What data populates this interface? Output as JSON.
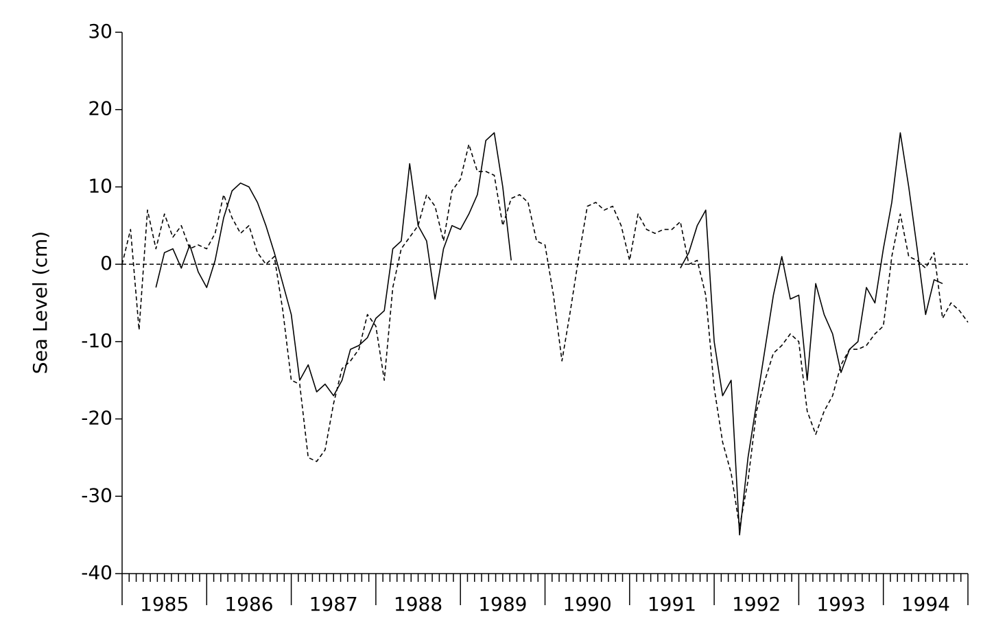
{
  "chart_data": {
    "type": "line",
    "y_label": "Sea Level (cm)",
    "xlim": [
      1985,
      1995
    ],
    "xticks": [
      1985,
      1986,
      1987,
      1988,
      1989,
      1990,
      1991,
      1992,
      1993,
      1994,
      1995
    ],
    "xlabels": [
      "1985",
      "1986",
      "1987",
      "1988",
      "1989",
      "1990",
      "1991",
      "1992",
      "1993",
      "1994"
    ],
    "ylim": [
      -40,
      30
    ],
    "yticks": [
      -40,
      -30,
      -20,
      -10,
      0,
      10,
      20,
      30
    ],
    "zero_line": true,
    "x": [
      1985.0,
      1985.1,
      1985.2,
      1985.3,
      1985.4,
      1985.5,
      1985.6,
      1985.7,
      1985.8,
      1985.9,
      1986.0,
      1986.1,
      1986.2,
      1986.3,
      1986.4,
      1986.5,
      1986.6,
      1986.7,
      1986.8,
      1986.9,
      1987.0,
      1987.1,
      1987.2,
      1987.3,
      1987.4,
      1987.5,
      1987.6,
      1987.7,
      1987.8,
      1987.9,
      1988.0,
      1988.1,
      1988.2,
      1988.3,
      1988.4,
      1988.5,
      1988.6,
      1988.7,
      1988.8,
      1988.9,
      1989.0,
      1989.1,
      1989.2,
      1989.3,
      1989.4,
      1989.5,
      1989.6,
      1989.7,
      1989.8,
      1989.9,
      1990.0,
      1990.1,
      1990.2,
      1990.3,
      1990.4,
      1990.5,
      1990.6,
      1990.7,
      1990.8,
      1990.9,
      1991.0,
      1991.1,
      1991.2,
      1991.3,
      1991.4,
      1991.5,
      1991.6,
      1991.7,
      1991.8,
      1991.9,
      1992.0,
      1992.1,
      1992.2,
      1992.3,
      1992.4,
      1992.5,
      1992.6,
      1992.7,
      1992.8,
      1992.9,
      1993.0,
      1993.1,
      1993.2,
      1993.3,
      1993.4,
      1993.5,
      1993.6,
      1993.7,
      1993.8,
      1993.9,
      1994.0,
      1994.1,
      1994.2,
      1994.3,
      1994.4,
      1994.5,
      1994.6,
      1994.7,
      1994.8,
      1994.9,
      1995.0
    ],
    "series": [
      {
        "color": "#000000",
        "dash": "none",
        "values": [
          null,
          null,
          null,
          null,
          -3,
          1.5,
          2,
          -0.5,
          2.5,
          -1,
          -3,
          0.5,
          6,
          9.5,
          10.5,
          10,
          8,
          5,
          1.5,
          -2.5,
          -6.5,
          -15,
          -13,
          -16.5,
          -15.5,
          -17,
          -15,
          -11,
          -10.5,
          -9.5,
          -7,
          -6,
          2,
          3,
          13,
          5,
          3,
          -4.5,
          2,
          5,
          4.5,
          6.5,
          9,
          16,
          17,
          10,
          0.5,
          null,
          null,
          null,
          null,
          null,
          null,
          null,
          null,
          null,
          null,
          null,
          null,
          null,
          null,
          null,
          null,
          null,
          null,
          null,
          -0.5,
          1.5,
          5,
          7,
          -10,
          -17,
          -15,
          -35,
          -25,
          -18,
          -11,
          -4,
          1,
          -4.5,
          -4,
          -15,
          -2.5,
          -6.5,
          -9,
          -14,
          -11,
          -10,
          -3,
          -5,
          2,
          8,
          17,
          10,
          2,
          -6.5,
          -2,
          -2.5,
          null,
          null,
          null
        ]
      },
      {
        "color": "#000000",
        "dash": "6,4",
        "values": [
          0,
          4.5,
          -8.5,
          7,
          2,
          6.5,
          3.5,
          5,
          2,
          2.5,
          2,
          4,
          9,
          6,
          4,
          5,
          1.5,
          0,
          1,
          -6,
          -15,
          -15.5,
          -25,
          -25.5,
          -24,
          -18,
          -13.5,
          -12.5,
          -11,
          -6.5,
          -8,
          -15,
          -3,
          2,
          3.5,
          5,
          9,
          7.5,
          3,
          9.5,
          11,
          15.5,
          12,
          12,
          11.5,
          5,
          8.5,
          9,
          8,
          3,
          2.5,
          -4,
          -12.5,
          -6,
          1,
          7.5,
          8,
          7,
          7.5,
          5,
          0.5,
          6.5,
          4.5,
          4,
          4.5,
          4.5,
          5.5,
          0,
          0.5,
          -4,
          -16,
          -23,
          -27,
          -34,
          -28,
          -19,
          -15,
          -11.5,
          -10.5,
          -9,
          -10,
          -19,
          -22,
          -19,
          -17,
          -13,
          -11,
          -11,
          -10.5,
          -9,
          -8,
          1,
          6.5,
          1,
          0.5,
          -0.5,
          1.5,
          -7,
          -5,
          -6,
          -7.5
        ]
      }
    ]
  }
}
